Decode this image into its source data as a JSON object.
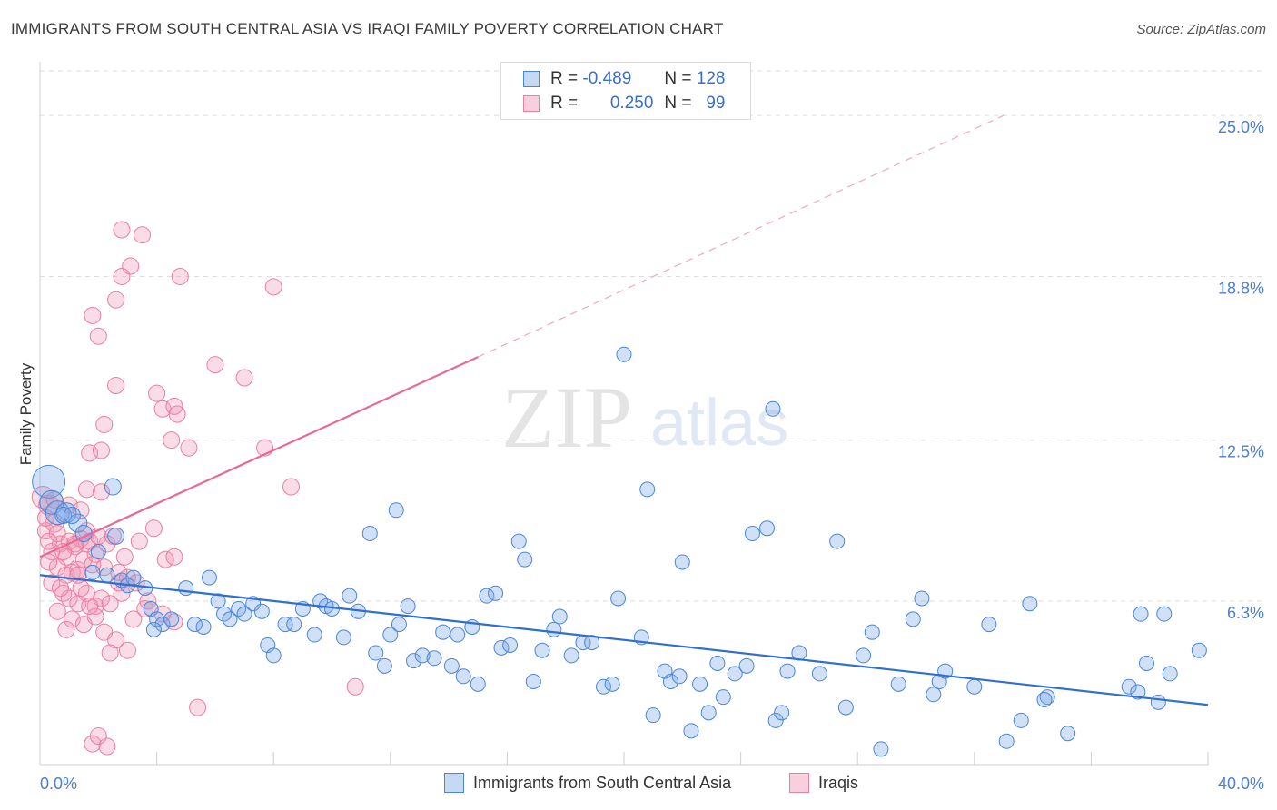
{
  "title": "IMMIGRANTS FROM SOUTH CENTRAL ASIA VS IRAQI FAMILY POVERTY CORRELATION CHART",
  "source": "Source: ZipAtlas.com",
  "watermark": {
    "zip": "ZIP",
    "atlas": "atlas"
  },
  "legend": {
    "blue": {
      "r_label": "R =",
      "r_value": "-0.489",
      "n_label": "N =",
      "n_value": "128"
    },
    "pink": {
      "r_label": "R =",
      "r_value": "0.250",
      "n_label": "N =",
      "n_value": "99"
    }
  },
  "bottom_legend": {
    "blue": "Immigrants from South Central Asia",
    "pink": "Iraqis"
  },
  "chart_data": {
    "type": "scatter",
    "ylabel": "Family Poverty",
    "xlim": [
      0,
      40
    ],
    "ylim": [
      0,
      27
    ],
    "x_tick_labels": [
      "0.0%",
      "40.0%"
    ],
    "y_tick_labels": [
      "6.3%",
      "12.5%",
      "18.8%",
      "25.0%"
    ],
    "y_ticks": [
      6.3,
      12.5,
      18.8,
      25.0
    ],
    "grid": true,
    "colors": {
      "blue": "#4a86d8",
      "pink": "#ea7fa0",
      "blue_line": "#2f6fcf",
      "pink_line": "#e8689a"
    },
    "series": [
      {
        "name": "Immigrants from South Central Asia",
        "color": "blue",
        "trend": {
          "x0": 0.0,
          "y0": 7.3,
          "x1": 40.0,
          "y1": 2.3
        },
        "points": [
          [
            0.3,
            10.9,
            18
          ],
          [
            0.4,
            10.1,
            13
          ],
          [
            0.6,
            9.7,
            13
          ],
          [
            0.9,
            9.7,
            11
          ],
          [
            1.3,
            9.3,
            10
          ],
          [
            0.8,
            9.6,
            9
          ],
          [
            1.1,
            9.6,
            9
          ],
          [
            2.5,
            10.7,
            9
          ],
          [
            1.5,
            8.9,
            9
          ],
          [
            2.6,
            8.8,
            9
          ],
          [
            2.0,
            8.2,
            8
          ],
          [
            1.8,
            7.4,
            8
          ],
          [
            2.3,
            7.3,
            8
          ],
          [
            2.8,
            7.1,
            8
          ],
          [
            3.2,
            7.2,
            8
          ],
          [
            3.0,
            6.9,
            8
          ],
          [
            3.6,
            6.8,
            8
          ],
          [
            3.8,
            6.0,
            8
          ],
          [
            4.0,
            5.6,
            8
          ],
          [
            4.2,
            5.4,
            8
          ],
          [
            3.9,
            5.2,
            8
          ],
          [
            4.5,
            5.6,
            8
          ],
          [
            5.0,
            6.8,
            8
          ],
          [
            5.3,
            5.4,
            8
          ],
          [
            5.6,
            5.3,
            8
          ],
          [
            5.8,
            7.2,
            8
          ],
          [
            6.1,
            6.3,
            8
          ],
          [
            6.3,
            5.8,
            8
          ],
          [
            6.5,
            5.6,
            8
          ],
          [
            6.8,
            6.0,
            8
          ],
          [
            7.0,
            5.8,
            8
          ],
          [
            7.3,
            6.2,
            8
          ],
          [
            7.6,
            5.9,
            8
          ],
          [
            7.8,
            4.6,
            8
          ],
          [
            8.0,
            4.2,
            8
          ],
          [
            8.4,
            5.4,
            8
          ],
          [
            8.7,
            5.4,
            8
          ],
          [
            9.0,
            6.0,
            8
          ],
          [
            9.4,
            5.0,
            8
          ],
          [
            9.6,
            6.3,
            8
          ],
          [
            9.8,
            6.1,
            8
          ],
          [
            10.0,
            6.0,
            8
          ],
          [
            10.4,
            4.9,
            8
          ],
          [
            10.6,
            6.5,
            8
          ],
          [
            10.9,
            5.9,
            8
          ],
          [
            11.3,
            8.9,
            8
          ],
          [
            11.5,
            4.3,
            8
          ],
          [
            11.8,
            3.8,
            8
          ],
          [
            12.0,
            5.0,
            8
          ],
          [
            12.3,
            5.4,
            8
          ],
          [
            12.2,
            9.8,
            8
          ],
          [
            12.6,
            6.1,
            8
          ],
          [
            12.8,
            4.0,
            8
          ],
          [
            13.1,
            4.2,
            8
          ],
          [
            13.5,
            4.1,
            8
          ],
          [
            13.8,
            5.1,
            8
          ],
          [
            14.1,
            3.8,
            8
          ],
          [
            14.3,
            5.0,
            8
          ],
          [
            14.5,
            3.4,
            8
          ],
          [
            14.8,
            5.3,
            8
          ],
          [
            15.0,
            3.1,
            8
          ],
          [
            15.3,
            6.5,
            8
          ],
          [
            15.6,
            6.6,
            8
          ],
          [
            15.8,
            4.5,
            8
          ],
          [
            16.1,
            4.6,
            8
          ],
          [
            16.4,
            8.6,
            8
          ],
          [
            16.6,
            7.9,
            8
          ],
          [
            16.9,
            3.2,
            8
          ],
          [
            17.2,
            4.4,
            8
          ],
          [
            17.6,
            5.2,
            8
          ],
          [
            17.8,
            5.7,
            8
          ],
          [
            18.2,
            4.2,
            8
          ],
          [
            18.6,
            4.7,
            8
          ],
          [
            18.9,
            4.7,
            8
          ],
          [
            19.3,
            3.0,
            8
          ],
          [
            19.6,
            3.1,
            8
          ],
          [
            19.8,
            6.4,
            8
          ],
          [
            20.0,
            15.8,
            8
          ],
          [
            20.6,
            4.9,
            8
          ],
          [
            20.8,
            10.6,
            8
          ],
          [
            21.0,
            1.9,
            8
          ],
          [
            21.4,
            3.6,
            8
          ],
          [
            21.6,
            3.2,
            8
          ],
          [
            21.9,
            3.4,
            8
          ],
          [
            22.0,
            7.8,
            8
          ],
          [
            22.3,
            1.3,
            8
          ],
          [
            22.6,
            3.1,
            8
          ],
          [
            22.9,
            2.0,
            8
          ],
          [
            23.2,
            3.9,
            8
          ],
          [
            23.4,
            2.6,
            8
          ],
          [
            23.8,
            3.5,
            8
          ],
          [
            24.4,
            8.9,
            8
          ],
          [
            24.9,
            9.1,
            8
          ],
          [
            25.1,
            13.7,
            8
          ],
          [
            24.2,
            3.8,
            8
          ],
          [
            25.2,
            1.7,
            8
          ],
          [
            25.6,
            3.6,
            8
          ],
          [
            25.4,
            2.0,
            8
          ],
          [
            26.0,
            4.3,
            8
          ],
          [
            26.7,
            3.5,
            8
          ],
          [
            27.3,
            8.6,
            8
          ],
          [
            27.6,
            2.2,
            8
          ],
          [
            28.2,
            4.2,
            8
          ],
          [
            28.5,
            5.1,
            8
          ],
          [
            28.8,
            0.6,
            8
          ],
          [
            29.4,
            3.1,
            8
          ],
          [
            29.9,
            5.6,
            8
          ],
          [
            30.2,
            6.4,
            8
          ],
          [
            30.6,
            2.7,
            8
          ],
          [
            30.8,
            3.2,
            8
          ],
          [
            31.0,
            3.6,
            8
          ],
          [
            32.0,
            3.0,
            8
          ],
          [
            32.5,
            5.4,
            8
          ],
          [
            33.6,
            1.7,
            8
          ],
          [
            33.1,
            0.9,
            8
          ],
          [
            33.9,
            6.2,
            8
          ],
          [
            34.5,
            2.6,
            8
          ],
          [
            35.2,
            1.2,
            8
          ],
          [
            37.3,
            3.0,
            8
          ],
          [
            37.6,
            2.8,
            8
          ],
          [
            37.9,
            3.9,
            8
          ],
          [
            37.7,
            5.8,
            8
          ],
          [
            38.3,
            2.4,
            8
          ],
          [
            38.5,
            5.8,
            8
          ],
          [
            38.7,
            3.5,
            8
          ],
          [
            39.7,
            4.4,
            8
          ],
          [
            34.4,
            2.5,
            8
          ]
        ]
      },
      {
        "name": "Iraqis",
        "color": "pink",
        "trend": {
          "x0": 0.0,
          "y0": 8.0,
          "x1": 15.0,
          "y1": 15.7,
          "dash_x1": 33.0,
          "dash_y1": 25.0
        },
        "points": [
          [
            0.1,
            10.3,
            12
          ],
          [
            0.3,
            10.0,
            11
          ],
          [
            0.5,
            9.3,
            10
          ],
          [
            0.2,
            9.0,
            9
          ],
          [
            0.6,
            8.9,
            9
          ],
          [
            0.7,
            8.5,
            9
          ],
          [
            0.4,
            8.2,
            9
          ],
          [
            0.9,
            8.0,
            9
          ],
          [
            1.0,
            8.6,
            9
          ],
          [
            1.2,
            8.4,
            9
          ],
          [
            1.4,
            8.7,
            9
          ],
          [
            1.6,
            8.5,
            9
          ],
          [
            1.7,
            8.6,
            9
          ],
          [
            1.9,
            8.1,
            9
          ],
          [
            0.6,
            7.6,
            9
          ],
          [
            0.9,
            7.3,
            9
          ],
          [
            1.1,
            7.4,
            9
          ],
          [
            1.3,
            7.5,
            9
          ],
          [
            1.5,
            7.9,
            9
          ],
          [
            1.8,
            7.7,
            9
          ],
          [
            0.4,
            7.0,
            9
          ],
          [
            0.8,
            6.6,
            9
          ],
          [
            1.0,
            6.4,
            9
          ],
          [
            1.3,
            6.2,
            9
          ],
          [
            1.6,
            6.6,
            9
          ],
          [
            1.9,
            6.1,
            9
          ],
          [
            2.1,
            6.4,
            9
          ],
          [
            2.4,
            6.2,
            9
          ],
          [
            2.7,
            7.0,
            9
          ],
          [
            3.0,
            7.2,
            9
          ],
          [
            0.6,
            5.9,
            9
          ],
          [
            1.1,
            5.6,
            9
          ],
          [
            1.5,
            5.4,
            9
          ],
          [
            1.9,
            5.7,
            9
          ],
          [
            2.2,
            5.1,
            9
          ],
          [
            2.6,
            4.8,
            9
          ],
          [
            3.2,
            5.6,
            9
          ],
          [
            3.6,
            6.0,
            9
          ],
          [
            4.2,
            5.8,
            9
          ],
          [
            4.6,
            5.5,
            9
          ],
          [
            2.4,
            4.3,
            9
          ],
          [
            3.0,
            4.4,
            9
          ],
          [
            1.8,
            0.8,
            9
          ],
          [
            2.0,
            1.1,
            9
          ],
          [
            2.3,
            0.7,
            9
          ],
          [
            5.4,
            2.2,
            9
          ],
          [
            1.6,
            10.6,
            9
          ],
          [
            2.1,
            10.5,
            9
          ],
          [
            1.7,
            12.0,
            9
          ],
          [
            2.1,
            12.1,
            9
          ],
          [
            2.2,
            13.1,
            9
          ],
          [
            1.8,
            17.3,
            9
          ],
          [
            2.0,
            16.5,
            9
          ],
          [
            2.6,
            14.6,
            9
          ],
          [
            2.8,
            18.8,
            9
          ],
          [
            2.6,
            17.9,
            9
          ],
          [
            3.1,
            19.2,
            9
          ],
          [
            3.5,
            20.4,
            9
          ],
          [
            2.8,
            20.6,
            9
          ],
          [
            4.0,
            14.3,
            9
          ],
          [
            4.2,
            13.7,
            9
          ],
          [
            4.6,
            13.8,
            9
          ],
          [
            4.8,
            18.8,
            9
          ],
          [
            4.7,
            13.5,
            9
          ],
          [
            4.5,
            12.5,
            9
          ],
          [
            5.1,
            12.2,
            9
          ],
          [
            6.0,
            15.4,
            9
          ],
          [
            7.0,
            14.9,
            9
          ],
          [
            7.7,
            12.2,
            9
          ],
          [
            8.0,
            18.4,
            9
          ],
          [
            8.6,
            10.7,
            9
          ],
          [
            3.4,
            8.6,
            9
          ],
          [
            3.9,
            9.1,
            9
          ],
          [
            4.3,
            7.9,
            9
          ],
          [
            4.6,
            8.0,
            9
          ],
          [
            2.3,
            8.5,
            9
          ],
          [
            2.7,
            7.4,
            9
          ],
          [
            2.0,
            8.8,
            9
          ],
          [
            1.4,
            6.8,
            9
          ],
          [
            0.3,
            8.6,
            9
          ],
          [
            0.9,
            5.2,
            9
          ],
          [
            3.3,
            7.0,
            9
          ],
          [
            10.8,
            3.0,
            9
          ],
          [
            1.3,
            7.3,
            9
          ],
          [
            2.2,
            7.6,
            9
          ],
          [
            0.8,
            8.2,
            9
          ],
          [
            1.2,
            8.5,
            9
          ],
          [
            1.6,
            9.0,
            9
          ],
          [
            2.5,
            8.8,
            9
          ],
          [
            0.2,
            9.5,
            9
          ],
          [
            0.5,
            10.2,
            9
          ],
          [
            1.0,
            10.0,
            9
          ],
          [
            1.4,
            9.8,
            9
          ],
          [
            2.8,
            6.6,
            9
          ],
          [
            3.7,
            6.3,
            9
          ],
          [
            0.7,
            6.8,
            9
          ],
          [
            1.7,
            6.1,
            9
          ],
          [
            2.9,
            8.0,
            9
          ],
          [
            0.3,
            7.8,
            9
          ]
        ]
      }
    ]
  }
}
